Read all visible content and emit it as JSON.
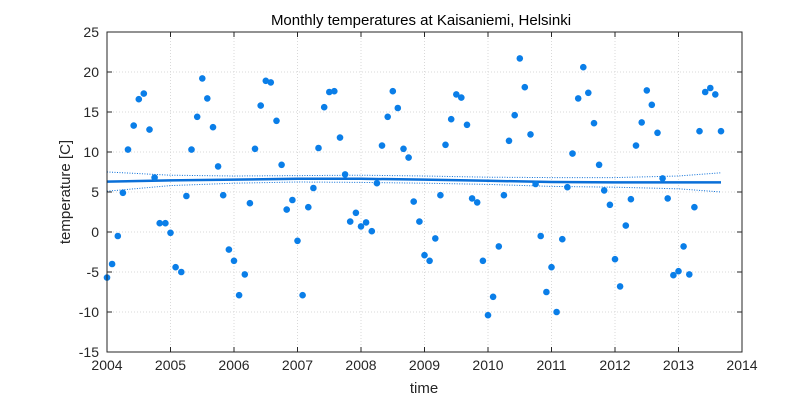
{
  "chart_data": {
    "type": "scatter",
    "title": "Monthly temperatures at Kaisaniemi, Helsinki",
    "xlabel": "time",
    "ylabel": "temperature [C]",
    "xlim": [
      2004,
      2014
    ],
    "ylim": [
      -15,
      25
    ],
    "xticks": [
      2004,
      2005,
      2006,
      2007,
      2008,
      2009,
      2010,
      2011,
      2012,
      2013,
      2014
    ],
    "yticks": [
      -15,
      -10,
      -5,
      0,
      5,
      10,
      15,
      20,
      25
    ],
    "grid": "dotted",
    "colors": {
      "points": "#0a7ee8",
      "trend": "#0a6fd8",
      "axes": "#262626",
      "grid": "#d9d9d9"
    },
    "series": [
      {
        "kind": "points",
        "x": [
          2004.0,
          2004.08,
          2004.17,
          2004.25,
          2004.33,
          2004.42,
          2004.5,
          2004.58,
          2004.67,
          2004.75,
          2004.83,
          2004.92,
          2005.0,
          2005.08,
          2005.17,
          2005.25,
          2005.33,
          2005.42,
          2005.5,
          2005.58,
          2005.67,
          2005.75,
          2005.83,
          2005.92,
          2006.0,
          2006.08,
          2006.17,
          2006.25,
          2006.33,
          2006.42,
          2006.5,
          2006.58,
          2006.67,
          2006.75,
          2006.83,
          2006.92,
          2007.0,
          2007.08,
          2007.17,
          2007.25,
          2007.33,
          2007.42,
          2007.5,
          2007.58,
          2007.67,
          2007.75,
          2007.83,
          2007.92,
          2008.0,
          2008.08,
          2008.17,
          2008.25,
          2008.33,
          2008.42,
          2008.5,
          2008.58,
          2008.67,
          2008.75,
          2008.83,
          2008.92,
          2009.0,
          2009.08,
          2009.17,
          2009.25,
          2009.33,
          2009.42,
          2009.5,
          2009.58,
          2009.67,
          2009.75,
          2009.83,
          2009.92,
          2010.0,
          2010.08,
          2010.17,
          2010.25,
          2010.33,
          2010.42,
          2010.5,
          2010.58,
          2010.67,
          2010.75,
          2010.83,
          2010.92,
          2011.0,
          2011.08,
          2011.17,
          2011.25,
          2011.33,
          2011.42,
          2011.5,
          2011.58,
          2011.67,
          2011.75,
          2011.83,
          2011.92,
          2012.0,
          2012.08,
          2012.17,
          2012.25,
          2012.33,
          2012.42,
          2012.5,
          2012.58,
          2012.67,
          2012.75,
          2012.83,
          2012.92,
          2013.0,
          2013.08,
          2013.17,
          2013.25,
          2013.33,
          2013.42,
          2013.5,
          2013.58,
          2013.67
        ],
        "y": [
          -5.7,
          -4.0,
          -0.5,
          4.9,
          10.3,
          13.3,
          16.6,
          17.3,
          12.8,
          6.8,
          1.1,
          1.1,
          -0.1,
          -4.4,
          -5.0,
          4.5,
          10.3,
          14.4,
          19.2,
          16.7,
          13.1,
          8.2,
          4.6,
          -2.2,
          -3.6,
          -7.9,
          -5.3,
          3.6,
          10.4,
          15.8,
          18.9,
          18.7,
          13.9,
          8.4,
          2.8,
          4.0,
          -1.1,
          -7.9,
          3.1,
          5.5,
          10.5,
          15.6,
          17.5,
          17.6,
          11.8,
          7.2,
          1.3,
          2.4,
          0.7,
          1.2,
          0.1,
          6.1,
          10.8,
          14.4,
          17.6,
          15.5,
          10.4,
          9.3,
          3.8,
          1.3,
          -2.9,
          -3.6,
          -0.8,
          4.6,
          10.9,
          14.1,
          17.2,
          16.8,
          13.4,
          4.2,
          3.7,
          -3.6,
          -10.4,
          -8.1,
          -1.8,
          4.6,
          11.4,
          14.6,
          21.7,
          18.1,
          12.2,
          6.0,
          -0.5,
          -7.5,
          -4.4,
          -10.0,
          -0.9,
          5.6,
          9.8,
          16.7,
          20.6,
          17.4,
          13.6,
          8.4,
          5.2,
          3.4,
          -3.4,
          -6.8,
          0.8,
          4.1,
          10.8,
          13.7,
          17.7,
          15.9,
          12.4,
          6.7,
          4.2,
          -5.4,
          -4.9,
          -1.8,
          -5.3,
          3.1,
          12.6,
          17.5,
          18.0,
          17.2,
          12.6
        ]
      },
      {
        "kind": "trend",
        "x": [
          2004.0,
          2005.0,
          2006.0,
          2007.0,
          2008.0,
          2009.0,
          2010.0,
          2011.0,
          2012.0,
          2013.0,
          2013.67
        ],
        "y": [
          6.3,
          6.45,
          6.55,
          6.65,
          6.65,
          6.55,
          6.4,
          6.25,
          6.2,
          6.2,
          6.2
        ],
        "upper": [
          7.5,
          7.1,
          7.0,
          7.05,
          7.1,
          7.0,
          6.85,
          6.8,
          6.8,
          7.0,
          7.4
        ],
        "lower": [
          5.1,
          5.8,
          6.1,
          6.25,
          6.2,
          6.1,
          5.95,
          5.7,
          5.6,
          5.4,
          5.0
        ]
      }
    ]
  }
}
